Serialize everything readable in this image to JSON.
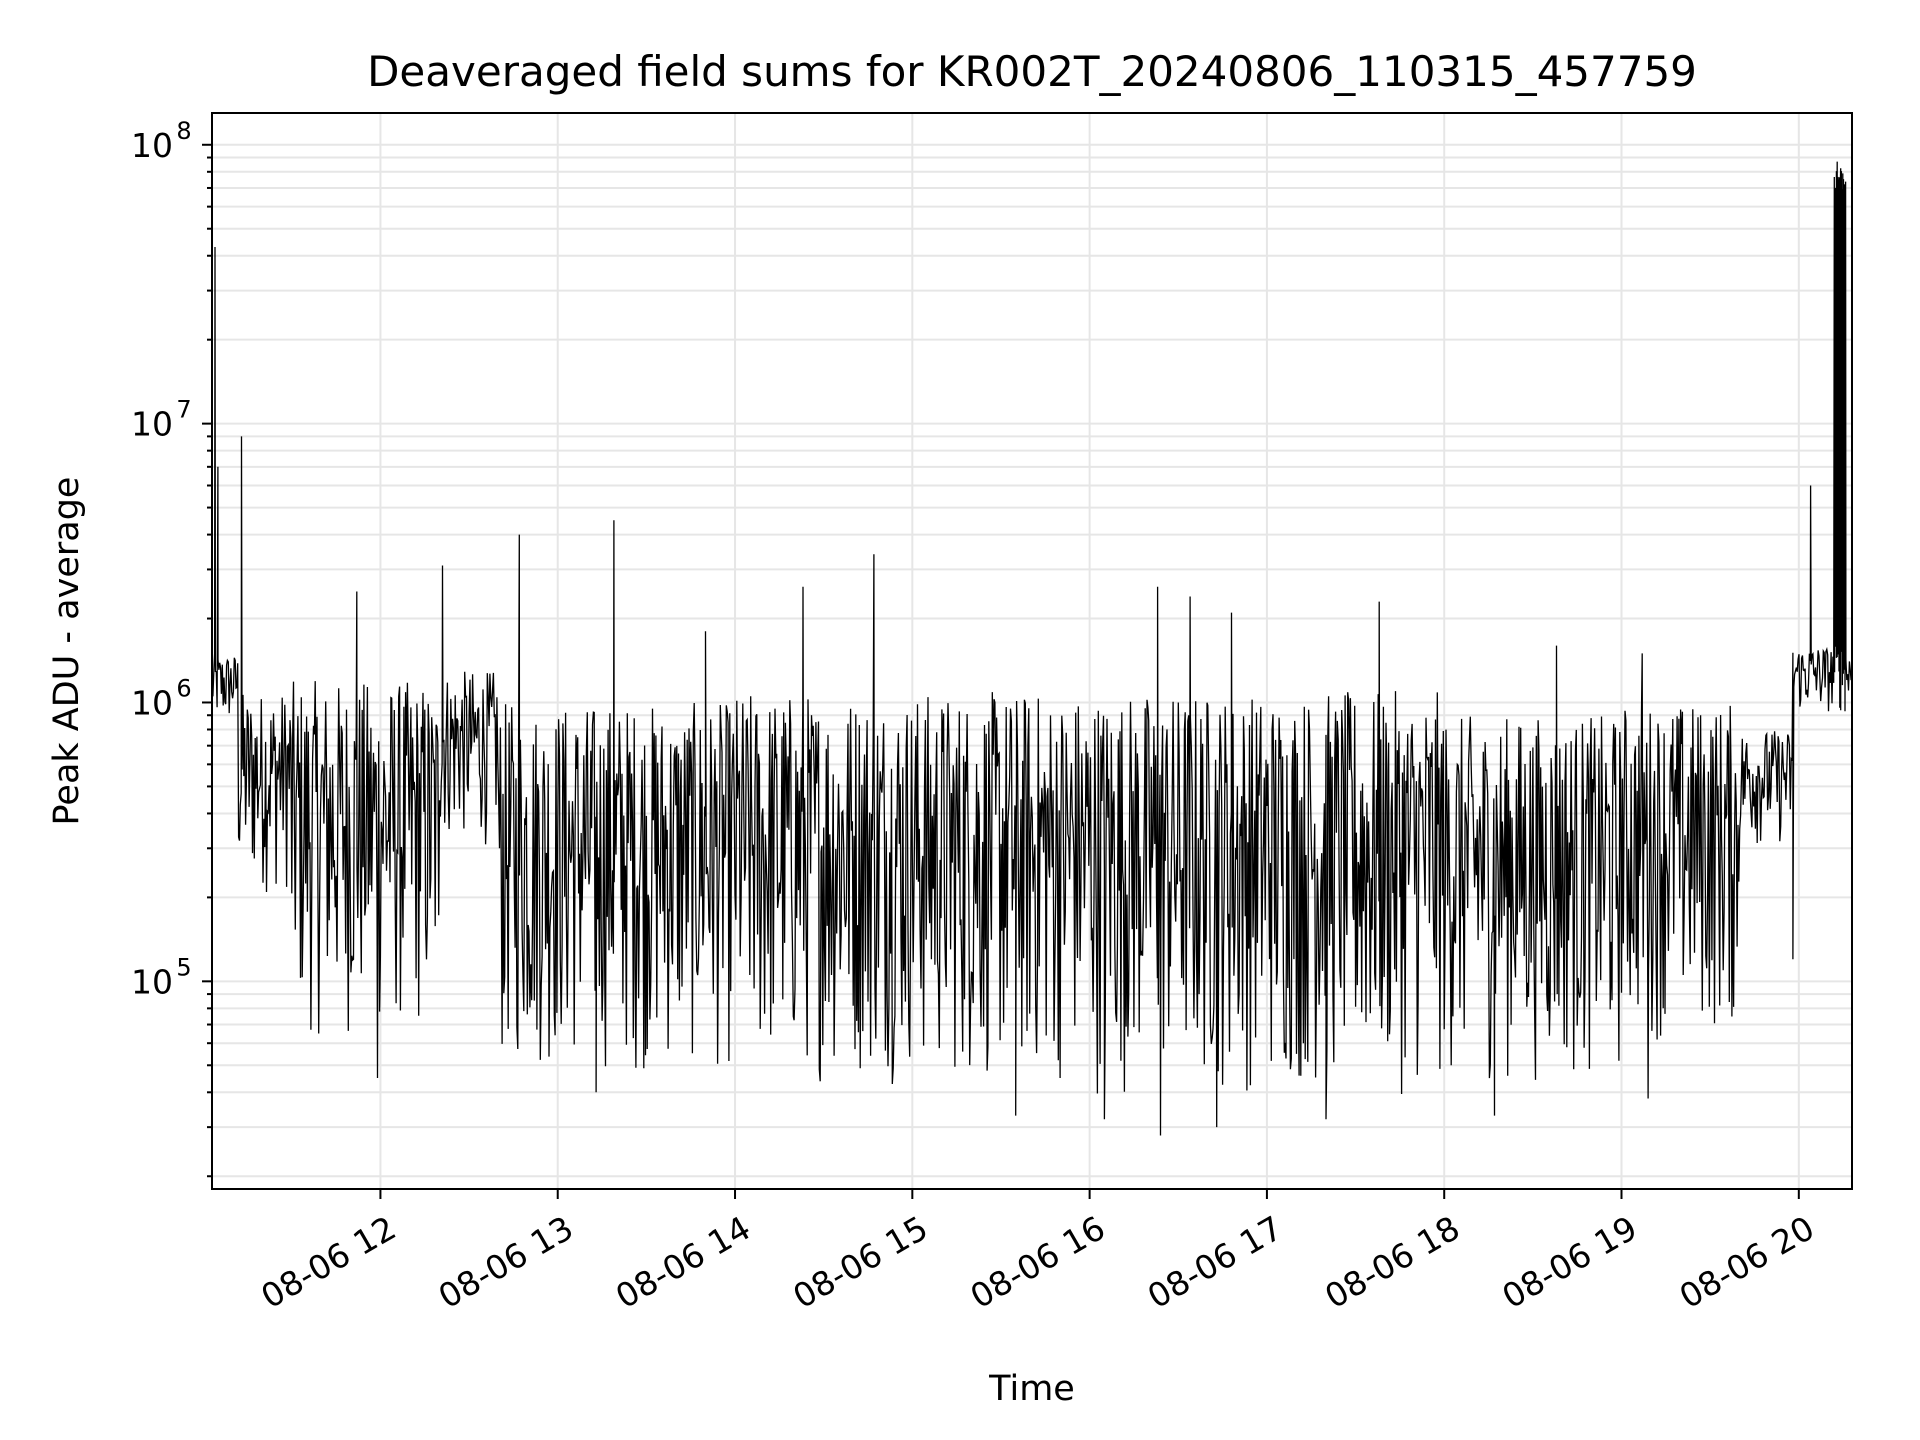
{
  "chart_data": {
    "type": "line",
    "title": "Deaveraged field sums for KR002T_20240806_110315_457759",
    "xlabel": "Time",
    "ylabel": "Peak ADU - average",
    "x_axis": {
      "kind": "time",
      "start": "08-06 11:03",
      "end": "08-06 20:18",
      "ticks": [
        {
          "value": "08-06 12",
          "label": "08-06 12"
        },
        {
          "value": "08-06 13",
          "label": "08-06 13"
        },
        {
          "value": "08-06 14",
          "label": "08-06 14"
        },
        {
          "value": "08-06 15",
          "label": "08-06 15"
        },
        {
          "value": "08-06 16",
          "label": "08-06 16"
        },
        {
          "value": "08-06 17",
          "label": "08-06 17"
        },
        {
          "value": "08-06 18",
          "label": "08-06 18"
        },
        {
          "value": "08-06 19",
          "label": "08-06 19"
        },
        {
          "value": "08-06 20",
          "label": "08-06 20"
        }
      ]
    },
    "y_axis": {
      "scale": "log",
      "ylim": [
        18000,
        130000000
      ],
      "ticks": [
        {
          "value": 100000,
          "base": "10",
          "exp": "5"
        },
        {
          "value": 1000000,
          "base": "10",
          "exp": "6"
        },
        {
          "value": 10000000,
          "base": "10",
          "exp": "7"
        },
        {
          "value": 100000000,
          "base": "10",
          "exp": "8"
        }
      ]
    },
    "grid": "major-and-minor",
    "series": [
      {
        "color": "#000000",
        "segments": [
          {
            "start": "08-06 11:03",
            "end": "08-06 11:12",
            "envelope_high": 1500000,
            "envelope_low": 800000
          },
          {
            "start": "08-06 11:12",
            "end": "08-06 11:30",
            "envelope_high": 1100000,
            "envelope_low": 200000
          },
          {
            "start": "08-06 11:30",
            "end": "08-06 12:20",
            "envelope_high": 1200000,
            "envelope_low": 60000
          },
          {
            "start": "08-06 12:20",
            "end": "08-06 12:40",
            "envelope_high": 1300000,
            "envelope_low": 300000
          },
          {
            "start": "08-06 12:40",
            "end": "08-06 14:00",
            "envelope_high": 1000000,
            "envelope_low": 45000
          },
          {
            "start": "08-06 14:00",
            "end": "08-06 15:00",
            "envelope_high": 1100000,
            "envelope_low": 42000
          },
          {
            "start": "08-06 15:00",
            "end": "08-06 16:00",
            "envelope_high": 1100000,
            "envelope_low": 40000
          },
          {
            "start": "08-06 16:00",
            "end": "08-06 18:00",
            "envelope_high": 1100000,
            "envelope_low": 38000
          },
          {
            "start": "08-06 18:00",
            "end": "08-06 19:00",
            "envelope_high": 900000,
            "envelope_low": 42000
          },
          {
            "start": "08-06 19:00",
            "end": "08-06 19:40",
            "envelope_high": 1000000,
            "envelope_low": 60000
          },
          {
            "start": "08-06 19:40",
            "end": "08-06 19:58",
            "envelope_high": 800000,
            "envelope_low": 300000
          },
          {
            "start": "08-06 19:58",
            "end": "08-06 20:18",
            "envelope_high": 1600000,
            "envelope_low": 900000
          }
        ],
        "spikes": [
          {
            "x": "08-06 11:04",
            "y": 43000000
          },
          {
            "x": "08-06 11:05",
            "y": 7000000
          },
          {
            "x": "08-06 11:13",
            "y": 9000000
          },
          {
            "x": "08-06 11:52",
            "y": 2500000
          },
          {
            "x": "08-06 12:21",
            "y": 3100000
          },
          {
            "x": "08-06 12:47",
            "y": 4000000
          },
          {
            "x": "08-06 13:19",
            "y": 4500000
          },
          {
            "x": "08-06 13:50",
            "y": 1800000
          },
          {
            "x": "08-06 14:23",
            "y": 2600000
          },
          {
            "x": "08-06 14:47",
            "y": 3400000
          },
          {
            "x": "08-06 16:23",
            "y": 2600000
          },
          {
            "x": "08-06 16:34",
            "y": 2400000
          },
          {
            "x": "08-06 16:48",
            "y": 2100000
          },
          {
            "x": "08-06 17:38",
            "y": 2300000
          },
          {
            "x": "08-06 18:38",
            "y": 1600000
          },
          {
            "x": "08-06 19:07",
            "y": 1500000
          },
          {
            "x": "08-06 20:04",
            "y": 6000000
          },
          {
            "x": "08-06 20:13",
            "y": 87000000
          },
          {
            "x": "08-06 20:14",
            "y": 70000000
          }
        ],
        "dips": [
          {
            "x": "08-06 11:59",
            "y": 45000
          },
          {
            "x": "08-06 13:13",
            "y": 40000
          },
          {
            "x": "08-06 15:35",
            "y": 33000
          },
          {
            "x": "08-06 16:05",
            "y": 32000
          },
          {
            "x": "08-06 16:24",
            "y": 28000
          },
          {
            "x": "08-06 16:43",
            "y": 30000
          },
          {
            "x": "08-06 17:20",
            "y": 32000
          },
          {
            "x": "08-06 18:17",
            "y": 33000
          },
          {
            "x": "08-06 19:09",
            "y": 38000
          },
          {
            "x": "08-06 19:58",
            "y": 120000
          }
        ],
        "plateau": {
          "start": "08-06 20:12",
          "end": "08-06 20:16",
          "high": 85000000
        }
      }
    ]
  }
}
